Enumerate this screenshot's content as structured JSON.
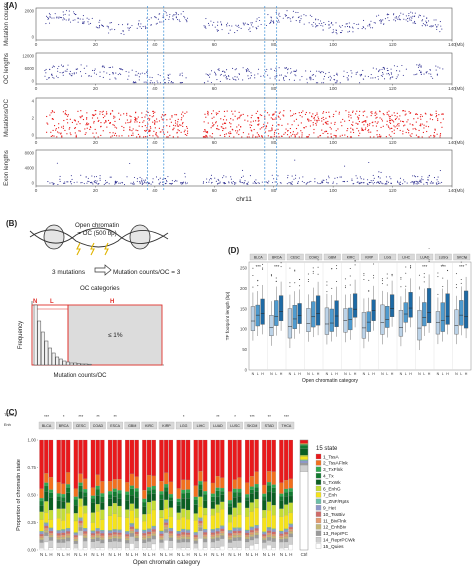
{
  "panel_labels": {
    "a": "(A)",
    "b": "(B)",
    "c": "(C)",
    "d": "(D)"
  },
  "panelA": {
    "tracks": [
      {
        "label": "Mutation counts",
        "ticks": [
          "0",
          "2000"
        ],
        "color": "#2b2c8f"
      },
      {
        "label": "OC lengths",
        "ticks": [
          "0",
          "6000",
          "12000"
        ],
        "color": "#2b2c8f"
      },
      {
        "label": "Mutations/OC",
        "ticks": [
          "0",
          "2",
          "4"
        ],
        "color": "#e81c1c"
      },
      {
        "label": "Exon lengths",
        "ticks": [
          "0",
          "4000",
          "8000"
        ],
        "color": "#2b2c8f"
      }
    ],
    "xticks": [
      "0",
      "20",
      "40",
      "60",
      "80",
      "100",
      "120",
      "140"
    ],
    "xunit": "(Mb)",
    "xlabel": "chr11"
  },
  "panelB": {
    "oc_text": "Open chromatin\n= OC (500 bp)",
    "mut_text": "3 mutations",
    "arrow_text": "Mutation counts/OC = 3",
    "categories_title": "OC categories",
    "cat_n": "N",
    "cat_l": "L",
    "cat_h": "H",
    "pct": "≤ 1%",
    "ylabel": "Frequency",
    "xlabel": "Mutation counts/OC"
  },
  "panelC": {
    "top_labels": [
      "TCGA",
      "Enh",
      "BLCA",
      "BRCA",
      "CESC",
      "COAD",
      "ESCA",
      "GBM",
      "KIRC",
      "KIRP",
      "LGG",
      "LIHC",
      "LUAD",
      "LUSC",
      "SKCM",
      "STAD",
      "THCA"
    ],
    "cancers": [
      "BLCA",
      "BRCA",
      "CESC",
      "COAD",
      "ESCA",
      "GBM",
      "KIRC",
      "KIRP",
      "LGG",
      "LIHC",
      "LUAD",
      "LUSC",
      "SKCM",
      "STAD",
      "THCA"
    ],
    "sig": [
      "***",
      "*",
      "***",
      "**",
      "**",
      "",
      "",
      "",
      "*",
      "",
      "**",
      "*",
      "***",
      "**",
      "***"
    ],
    "ylabel": "Proportion of chromatin state",
    "xlabel": "Open chromatin category",
    "yticks": [
      "0.00",
      "0.25",
      "0.50",
      "0.75",
      "1.00"
    ],
    "group_labels": [
      "N",
      "L",
      "H"
    ],
    "ctrl_label": "Ctrl",
    "legend_title": "15 state",
    "legend": [
      {
        "name": "1_TssA",
        "color": "#e8191c"
      },
      {
        "name": "2_TssAFlnk",
        "color": "#f26f1e"
      },
      {
        "name": "3_TxFlnk",
        "color": "#2fa84f"
      },
      {
        "name": "4_Tx",
        "color": "#127a2f"
      },
      {
        "name": "5_TxWk",
        "color": "#0b5e22"
      },
      {
        "name": "6_EnhG",
        "color": "#c3dc34"
      },
      {
        "name": "7_Enh",
        "color": "#f5e31a"
      },
      {
        "name": "8_ZNF/Rpts",
        "color": "#6bbfa7"
      },
      {
        "name": "9_Het",
        "color": "#8e97c9"
      },
      {
        "name": "10_TssBiv",
        "color": "#cf6b69"
      },
      {
        "name": "11_BivFlnk",
        "color": "#e39a6f"
      },
      {
        "name": "12_EnhBiv",
        "color": "#c4b676"
      },
      {
        "name": "13_ReprPC",
        "color": "#9a9a9a"
      },
      {
        "name": "14_ReprPCWk",
        "color": "#cfcfcf"
      },
      {
        "name": "15_Quies",
        "color": "#ffffff"
      }
    ]
  },
  "panelD": {
    "cancers": [
      "BLCA",
      "BRCA",
      "CESC",
      "COAD",
      "GBM",
      "KIRC",
      "KIRP",
      "LGG",
      "LIHC",
      "LUAD",
      "LUSC",
      "SKCM"
    ],
    "sig": [
      "***",
      "***",
      "",
      "",
      "",
      "",
      "",
      "",
      "",
      "***",
      "***",
      "***"
    ],
    "ylabel": "TF footprint length (bp)",
    "xlabel": "Open chromatin category",
    "yticks": [
      "0",
      "50",
      "100",
      "150",
      "200",
      "250"
    ],
    "group_labels": [
      "N",
      "L",
      "H"
    ]
  }
}
